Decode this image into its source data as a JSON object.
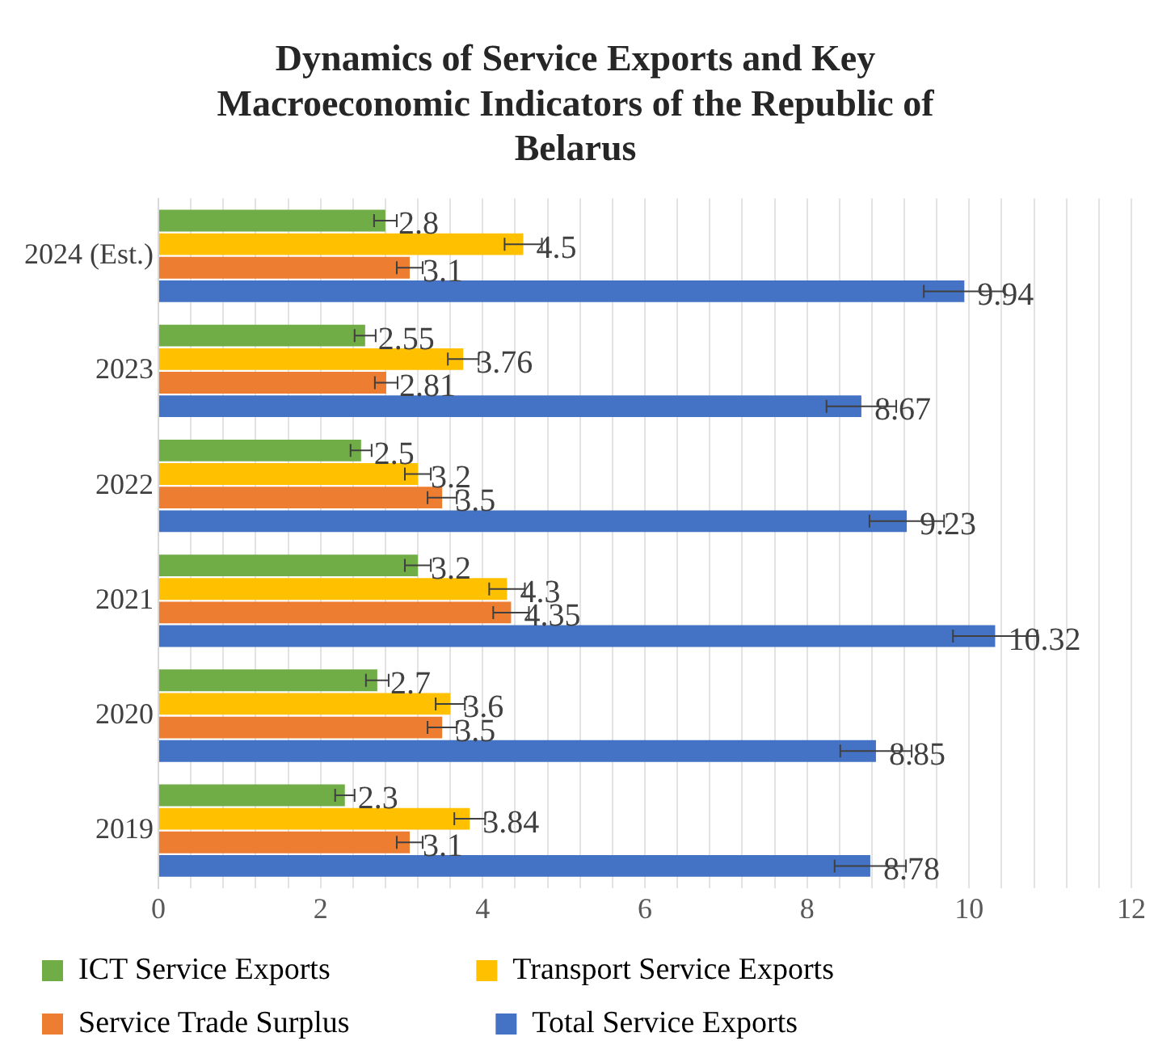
{
  "chart_data": {
    "type": "bar",
    "orientation": "horizontal",
    "title": "Dynamics of Service Exports and Key Macroeconomic Indicators of the Republic of Belarus",
    "categories": [
      "2024 (Est.)",
      "2023",
      "2022",
      "2021",
      "2020",
      "2019"
    ],
    "series": [
      {
        "name": "ICT Service Exports",
        "color": "#70ad47",
        "values": [
          2.8,
          2.55,
          2.5,
          3.2,
          2.7,
          2.3
        ],
        "errors": [
          0.14,
          0.13,
          0.13,
          0.16,
          0.14,
          0.12
        ]
      },
      {
        "name": "Transport Service Exports",
        "color": "#ffc000",
        "values": [
          4.5,
          3.76,
          3.2,
          4.3,
          3.6,
          3.84
        ],
        "errors": [
          0.23,
          0.19,
          0.16,
          0.22,
          0.18,
          0.19
        ]
      },
      {
        "name": "Service Trade Surplus",
        "color": "#ed7d31",
        "values": [
          3.1,
          2.81,
          3.5,
          4.35,
          3.5,
          3.1
        ],
        "errors": [
          0.16,
          0.14,
          0.18,
          0.22,
          0.18,
          0.16
        ]
      },
      {
        "name": "Total Service Exports",
        "color": "#4472c4",
        "values": [
          9.94,
          8.67,
          9.23,
          10.32,
          8.85,
          8.78
        ],
        "errors": [
          0.5,
          0.43,
          0.46,
          0.52,
          0.44,
          0.44
        ]
      }
    ],
    "xlim": [
      0,
      12
    ],
    "xticks": [
      0,
      {
        "value": 0.4,
        "label": null
      },
      {
        "value": 0.8,
        "label": null
      },
      {
        "value": 1.2,
        "label": null
      },
      {
        "value": 1.6,
        "label": null
      },
      2,
      {
        "value": 2.4,
        "label": null
      },
      {
        "value": 2.8,
        "label": null
      },
      {
        "value": 3.2,
        "label": null
      },
      {
        "value": 3.6,
        "label": null
      },
      4,
      {
        "value": 4.4,
        "label": null
      },
      {
        "value": 4.8,
        "label": null
      },
      {
        "value": 5.2,
        "label": null
      },
      {
        "value": 5.6,
        "label": null
      },
      6,
      {
        "value": 6.4,
        "label": null
      },
      {
        "value": 6.8,
        "label": null
      },
      {
        "value": 7.2,
        "label": null
      },
      {
        "value": 7.6,
        "label": null
      },
      8,
      {
        "value": 8.4,
        "label": null
      },
      {
        "value": 8.8,
        "label": null
      },
      {
        "value": 9.2,
        "label": null
      },
      {
        "value": 9.6,
        "label": null
      },
      10,
      {
        "value": 10.4,
        "label": null
      },
      {
        "value": 10.8,
        "label": null
      },
      {
        "value": 11.2,
        "label": null
      },
      {
        "value": 11.6,
        "label": null
      },
      12
    ],
    "data_labels": true,
    "grid": "x",
    "legend": "bottom"
  }
}
